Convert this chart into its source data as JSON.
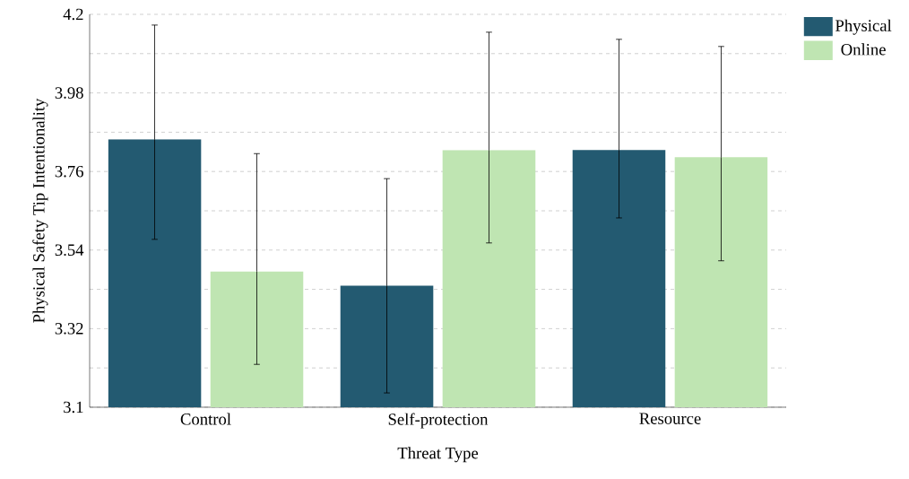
{
  "chart_data": {
    "type": "bar",
    "xlabel": "Threat Type",
    "ylabel": "Physical Safety Tip Intentionality",
    "categories": [
      "Control",
      "Self-protection",
      "Resource"
    ],
    "series": [
      {
        "name": "Physical",
        "color": "#235a71",
        "values": [
          3.85,
          3.44,
          3.82
        ],
        "errors": [
          [
            3.57,
            4.17
          ],
          [
            3.14,
            3.74
          ],
          [
            3.63,
            4.13
          ]
        ]
      },
      {
        "name": "Online",
        "color": "#bfe5b2",
        "values": [
          3.48,
          3.82,
          3.8
        ],
        "errors": [
          [
            3.22,
            3.81
          ],
          [
            3.56,
            4.15
          ],
          [
            3.51,
            4.11
          ]
        ]
      }
    ],
    "ylim": [
      3.1,
      4.2
    ],
    "yticks": [
      3.1,
      {
        "value": 3.21,
        "label": null
      },
      3.32,
      {
        "value": 3.43,
        "label": null
      },
      3.54,
      {
        "value": 3.65,
        "label": null
      },
      3.76,
      {
        "value": 3.87,
        "label": null
      },
      3.98,
      {
        "value": 4.09,
        "label": null
      },
      4.2
    ],
    "grid": "y",
    "legend": "top right"
  }
}
